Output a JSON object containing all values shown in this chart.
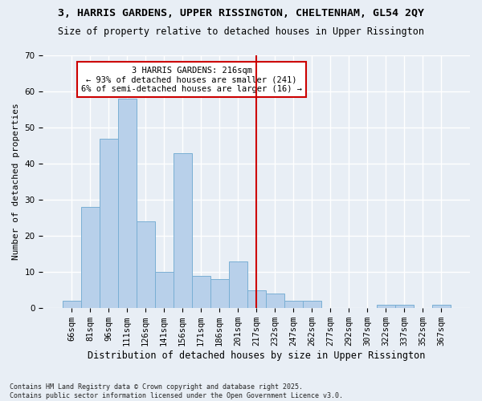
{
  "title1": "3, HARRIS GARDENS, UPPER RISSINGTON, CHELTENHAM, GL54 2QY",
  "title2": "Size of property relative to detached houses in Upper Rissington",
  "xlabel": "Distribution of detached houses by size in Upper Rissington",
  "ylabel": "Number of detached properties",
  "categories": [
    "66sqm",
    "81sqm",
    "96sqm",
    "111sqm",
    "126sqm",
    "141sqm",
    "156sqm",
    "171sqm",
    "186sqm",
    "201sqm",
    "217sqm",
    "232sqm",
    "247sqm",
    "262sqm",
    "277sqm",
    "292sqm",
    "307sqm",
    "322sqm",
    "337sqm",
    "352sqm",
    "367sqm"
  ],
  "values": [
    2,
    28,
    47,
    58,
    24,
    10,
    43,
    9,
    8,
    13,
    5,
    4,
    2,
    2,
    0,
    0,
    0,
    1,
    1,
    0,
    1
  ],
  "bar_color": "#b8d0ea",
  "bar_edge_color": "#7aafd4",
  "bg_color": "#e8eef5",
  "grid_color": "#ffffff",
  "vline_x_index": 10,
  "vline_color": "#cc0000",
  "annotation_text": "3 HARRIS GARDENS: 216sqm\n← 93% of detached houses are smaller (241)\n6% of semi-detached houses are larger (16) →",
  "annotation_box_color": "#ffffff",
  "annotation_edge_color": "#cc0000",
  "footnote": "Contains HM Land Registry data © Crown copyright and database right 2025.\nContains public sector information licensed under the Open Government Licence v3.0.",
  "ylim": [
    0,
    70
  ],
  "yticks": [
    0,
    10,
    20,
    30,
    40,
    50,
    60,
    70
  ],
  "title1_fontsize": 9.5,
  "title2_fontsize": 8.5,
  "xlabel_fontsize": 8.5,
  "ylabel_fontsize": 8.0,
  "tick_fontsize": 7.5,
  "annot_fontsize": 7.5,
  "footnote_fontsize": 6.0
}
